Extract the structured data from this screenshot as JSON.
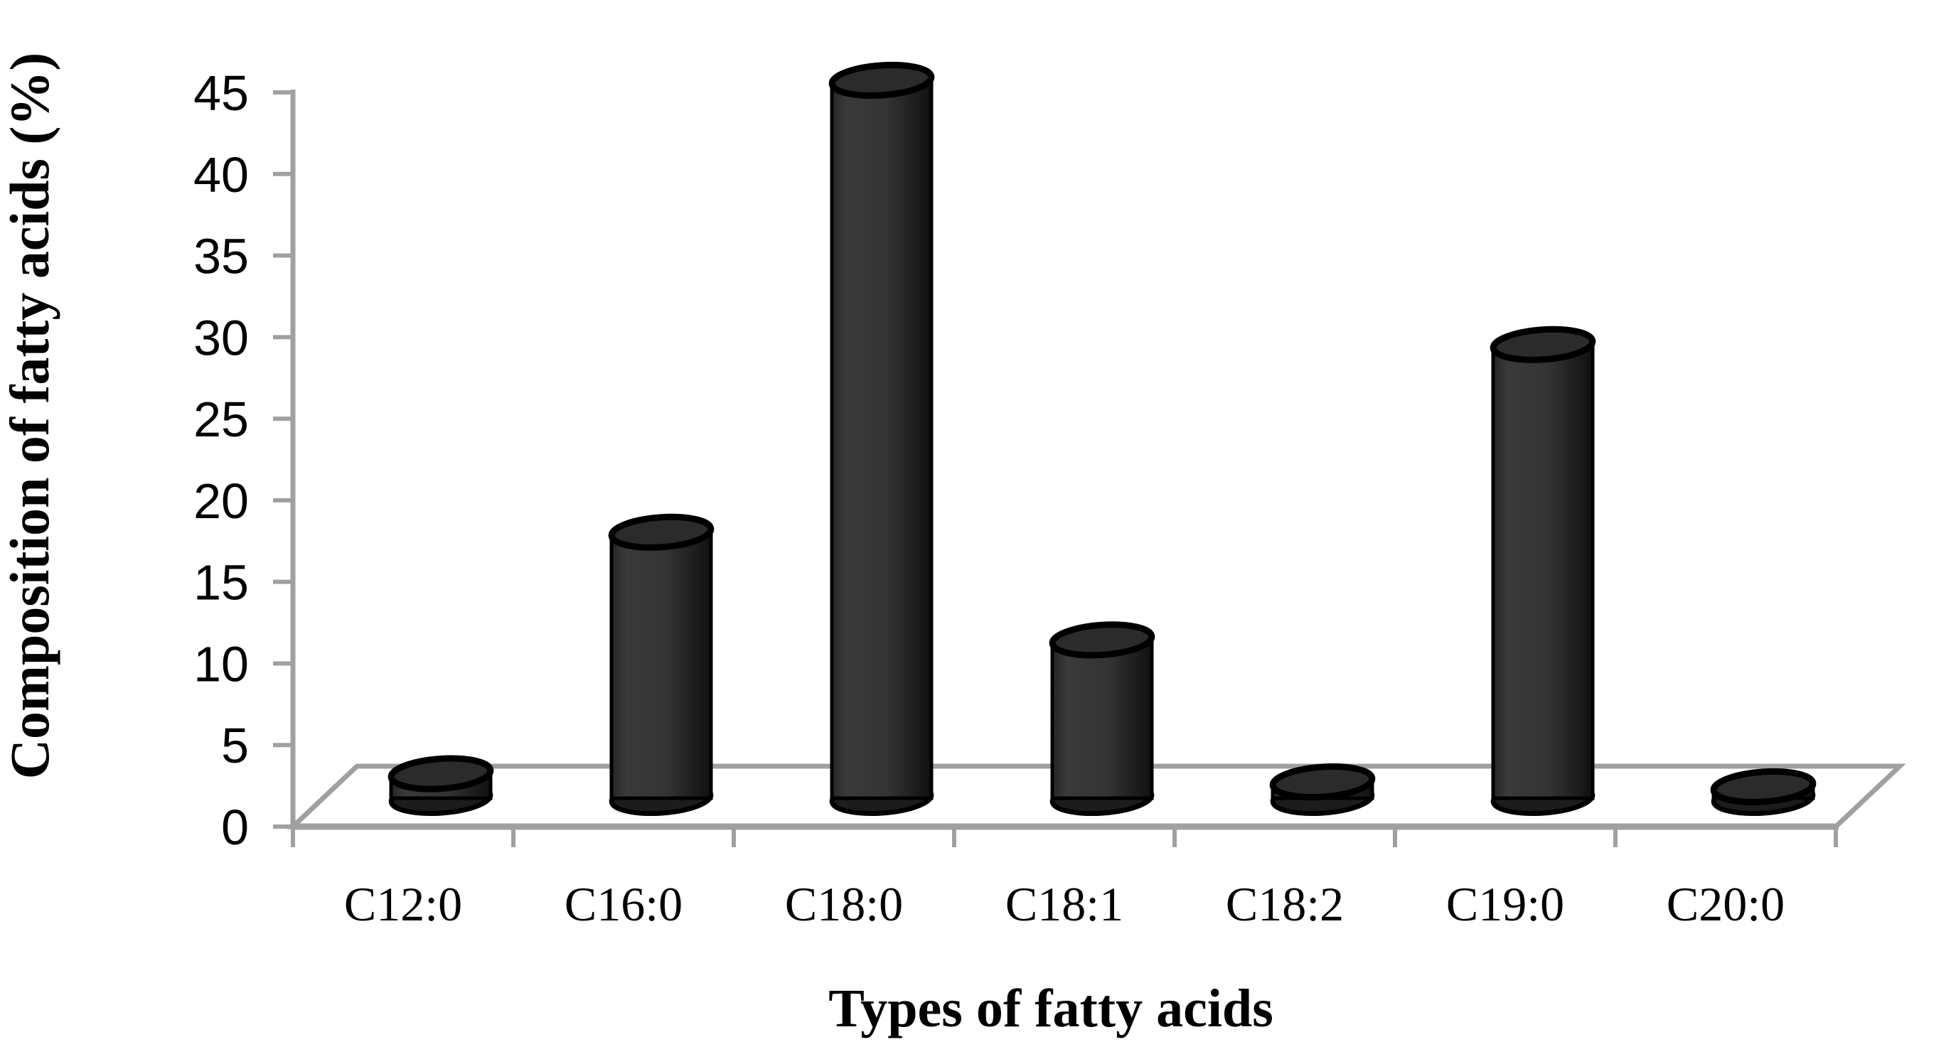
{
  "figure": {
    "background": "#ffffff"
  },
  "chart_data": {
    "type": "bar",
    "variant": "3d-cylinder",
    "title": "",
    "xlabel": "Types of fatty acids",
    "ylabel": "Composition of fatty acids (%)",
    "categories": [
      "C12:0",
      "C16:0",
      "C18:0",
      "C18:1",
      "C18:2",
      "C19:0",
      "C20:0"
    ],
    "values": [
      1.5,
      16.3,
      44,
      9.7,
      1.0,
      27.8,
      0.7
    ],
    "ylim": [
      0,
      45
    ],
    "ytick_step": 5,
    "yticks": [
      0,
      5,
      10,
      15,
      20,
      25,
      30,
      35,
      40,
      45
    ],
    "grid": false,
    "legend": "none",
    "bar_style": {
      "top_fill": "#2b2b2b",
      "bottom_fill": "#1c1c1c",
      "outline": "#000000",
      "side_gradient": [
        "#262626",
        "#3a3a3a",
        "#343434",
        "#101010"
      ],
      "side_gradient_offsets": [
        0,
        0.15,
        0.55,
        1
      ]
    },
    "axis_style": {
      "line_color": "#a0a0a0",
      "text_color": "#000000"
    }
  }
}
